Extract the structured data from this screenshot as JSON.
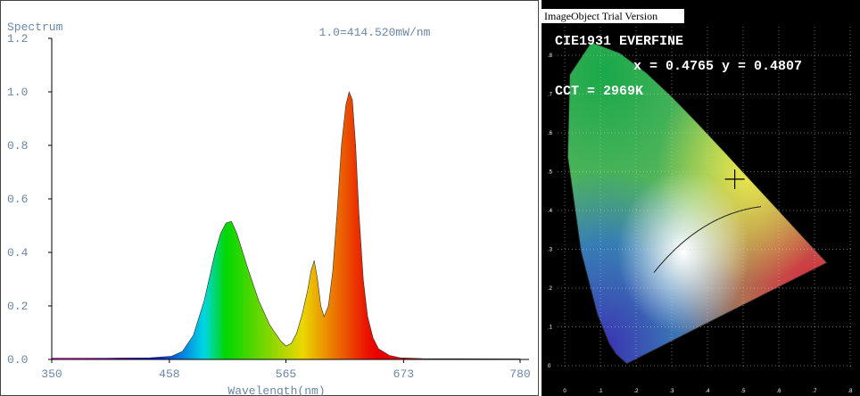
{
  "chart_data": [
    {
      "type": "area",
      "title": "Spectrum",
      "annotation": "1.0=414.520mW/nm",
      "xlabel": "Wavelength(nm)",
      "x": [
        350,
        400,
        440,
        460,
        470,
        480,
        490,
        500,
        505,
        510,
        515,
        520,
        530,
        540,
        550,
        560,
        565,
        570,
        575,
        580,
        585,
        588,
        591,
        594,
        597,
        600,
        604,
        608,
        612,
        616,
        620,
        623,
        626,
        629,
        632,
        636,
        640,
        645,
        650,
        660,
        670,
        690,
        780
      ],
      "values": [
        0.005,
        0.005,
        0.006,
        0.012,
        0.03,
        0.09,
        0.22,
        0.4,
        0.47,
        0.51,
        0.516,
        0.47,
        0.34,
        0.22,
        0.13,
        0.07,
        0.05,
        0.06,
        0.1,
        0.17,
        0.26,
        0.33,
        0.37,
        0.3,
        0.2,
        0.16,
        0.2,
        0.33,
        0.55,
        0.8,
        0.95,
        1.0,
        0.97,
        0.8,
        0.55,
        0.3,
        0.16,
        0.08,
        0.04,
        0.015,
        0.006,
        0.003,
        0.002
      ],
      "xlim": [
        350,
        780
      ],
      "xticks": [
        350,
        458,
        565,
        673,
        780
      ],
      "ylim": [
        0,
        1.2
      ],
      "yticks": [
        {
          "value": 0,
          "label": "0.0"
        },
        0.2,
        0.4,
        0.6,
        0.8,
        {
          "value": 1,
          "label": "1.0"
        },
        1.2
      ]
    },
    {
      "type": "cie",
      "watermark": "ImageObject Trial Version",
      "title": "CIE1931 EVERFINE",
      "coordinates_label": "x = 0.4765 y = 0.4807",
      "cct_label": "CCT = 2969K",
      "point": {
        "x": 0.4765,
        "y": 0.4807
      },
      "xlim": [
        0,
        0.8
      ],
      "ylim": [
        0,
        0.9
      ],
      "xticks": [
        0,
        {
          "value": 0.1,
          "label": ".1"
        },
        {
          "value": 0.2,
          "label": ".2"
        },
        {
          "value": 0.3,
          "label": ".3"
        },
        {
          "value": 0.4,
          "label": ".4"
        },
        {
          "value": 0.5,
          "label": ".5"
        },
        {
          "value": 0.6,
          "label": ".6"
        },
        {
          "value": 0.7,
          "label": ".7"
        },
        {
          "value": 0.8,
          "label": ".8"
        }
      ],
      "yticks": [
        0,
        {
          "value": 0.1,
          "label": ".1"
        },
        {
          "value": 0.2,
          "label": ".2"
        },
        {
          "value": 0.3,
          "label": ".3"
        },
        {
          "value": 0.4,
          "label": ".4"
        },
        {
          "value": 0.5,
          "label": ".5"
        },
        {
          "value": 0.6,
          "label": ".6"
        },
        {
          "value": 0.7,
          "label": ".7"
        },
        {
          "value": 0.8,
          "label": ".8"
        }
      ],
      "grid": true
    }
  ]
}
